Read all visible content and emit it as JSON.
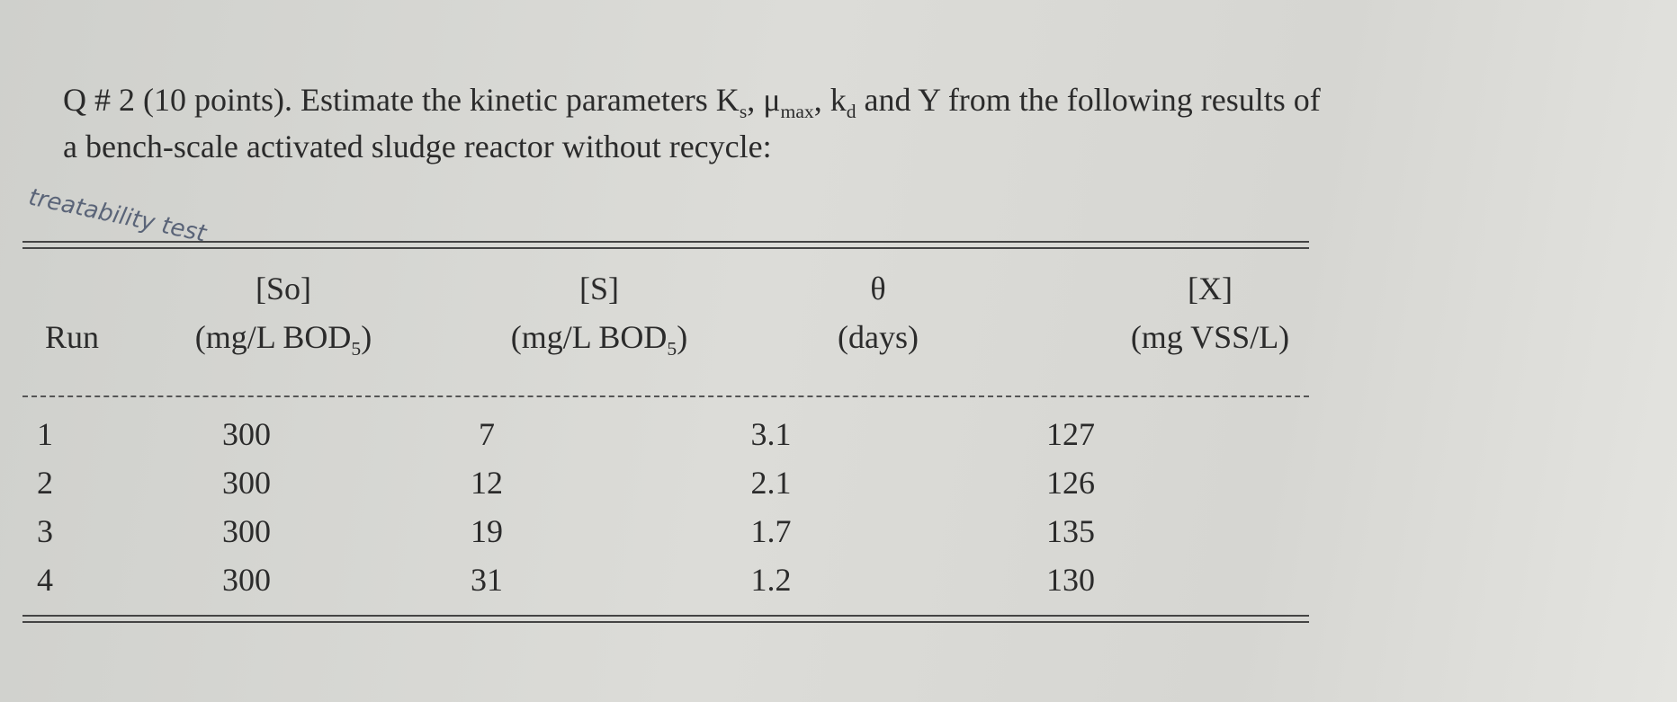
{
  "question": {
    "line1": [
      "Q # 2 (10 points). Estimate the kinetic parameters K",
      "s",
      ", μ",
      "max",
      ", k",
      "d",
      " and Y from the following results of"
    ],
    "line2": "a bench-scale activated sludge reactor without recycle:"
  },
  "handwritten_note": "treatability test",
  "table": {
    "headers": [
      {
        "top": "",
        "main": "Run",
        "sub": "",
        "tail": ""
      },
      {
        "top": "[So]",
        "main": "(mg/L BOD",
        "sub": "5",
        "tail": ")"
      },
      {
        "top": "[S]",
        "main": "(mg/L BOD",
        "sub": "5",
        "tail": ")"
      },
      {
        "top": "θ",
        "main": "(days)",
        "sub": "",
        "tail": ""
      },
      {
        "top": "[X]",
        "main": "(mg VSS/L)",
        "sub": "",
        "tail": ""
      }
    ],
    "rows": [
      [
        1,
        300,
        7,
        3.1,
        127
      ],
      [
        2,
        300,
        12,
        2.1,
        126
      ],
      [
        3,
        300,
        19,
        1.7,
        135
      ],
      [
        4,
        300,
        31,
        1.2,
        130
      ]
    ]
  }
}
